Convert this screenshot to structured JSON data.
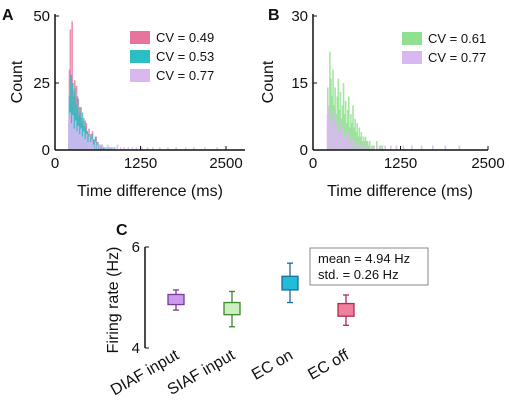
{
  "chart_data": [
    {
      "panel": "A",
      "type": "histogram",
      "xlabel": "Time difference (ms)",
      "ylabel": "Count",
      "xlim": [
        0,
        2500
      ],
      "ylim": [
        0,
        50
      ],
      "xticks": [
        "0",
        "1250",
        "2500"
      ],
      "yticks": [
        "0",
        "25",
        "50"
      ],
      "legend_position": "top-right",
      "series": [
        {
          "legend": "CV = 0.49",
          "color": "#e8739c",
          "bins": [
            [
              200,
              30
            ],
            [
              213,
              45
            ],
            [
              226,
              28
            ],
            [
              239,
              48
            ],
            [
              252,
              25
            ],
            [
              265,
              22
            ],
            [
              278,
              26
            ],
            [
              291,
              20
            ],
            [
              304,
              24
            ],
            [
              317,
              15
            ],
            [
              330,
              19
            ],
            [
              343,
              13
            ],
            [
              356,
              14
            ],
            [
              369,
              16
            ],
            [
              382,
              10
            ],
            [
              395,
              11
            ],
            [
              408,
              12
            ],
            [
              421,
              8
            ],
            [
              434,
              9
            ],
            [
              447,
              10
            ],
            [
              460,
              7
            ],
            [
              473,
              6
            ],
            [
              486,
              8
            ],
            [
              499,
              5
            ],
            [
              512,
              6
            ],
            [
              525,
              4
            ],
            [
              538,
              7
            ],
            [
              551,
              3
            ],
            [
              564,
              4
            ],
            [
              577,
              3
            ],
            [
              590,
              5
            ],
            [
              603,
              2
            ],
            [
              616,
              3
            ],
            [
              629,
              2
            ],
            [
              642,
              2
            ],
            [
              655,
              1
            ],
            [
              668,
              2
            ],
            [
              681,
              1
            ],
            [
              694,
              1
            ]
          ]
        },
        {
          "legend": "CV = 0.53",
          "color": "#2bbfc4",
          "bins": [
            [
              190,
              10
            ],
            [
              200,
              20
            ],
            [
              210,
              12
            ],
            [
              220,
              28
            ],
            [
              230,
              17
            ],
            [
              240,
              25
            ],
            [
              250,
              13
            ],
            [
              260,
              20
            ],
            [
              270,
              10
            ],
            [
              280,
              23
            ],
            [
              290,
              14
            ],
            [
              300,
              17
            ],
            [
              310,
              12
            ],
            [
              320,
              20
            ],
            [
              330,
              9
            ],
            [
              340,
              13
            ],
            [
              350,
              16
            ],
            [
              360,
              8
            ],
            [
              370,
              12
            ],
            [
              380,
              10
            ],
            [
              390,
              14
            ],
            [
              400,
              7
            ],
            [
              410,
              9
            ],
            [
              420,
              6
            ],
            [
              430,
              11
            ],
            [
              440,
              8
            ],
            [
              450,
              5
            ],
            [
              460,
              7
            ],
            [
              470,
              4
            ],
            [
              480,
              6
            ],
            [
              490,
              3
            ],
            [
              500,
              5
            ],
            [
              510,
              4
            ],
            [
              520,
              3
            ],
            [
              530,
              6
            ],
            [
              540,
              2
            ],
            [
              550,
              4
            ],
            [
              560,
              3
            ],
            [
              570,
              2
            ],
            [
              580,
              5
            ],
            [
              590,
              2
            ],
            [
              600,
              3
            ],
            [
              610,
              1
            ],
            [
              620,
              2
            ],
            [
              630,
              2
            ],
            [
              650,
              1
            ],
            [
              660,
              1
            ],
            [
              680,
              2
            ],
            [
              700,
              1
            ],
            [
              720,
              1
            ],
            [
              750,
              1
            ],
            [
              780,
              1
            ],
            [
              820,
              1
            ],
            [
              860,
              1
            ]
          ]
        },
        {
          "legend": "CV = 0.77",
          "color": "#d9b8f2",
          "bins": [
            [
              190,
              12
            ],
            [
              210,
              14
            ],
            [
              230,
              10
            ],
            [
              250,
              13
            ],
            [
              270,
              8
            ],
            [
              290,
              11
            ],
            [
              310,
              7
            ],
            [
              330,
              9
            ],
            [
              350,
              6
            ],
            [
              370,
              8
            ],
            [
              390,
              5
            ],
            [
              410,
              7
            ],
            [
              430,
              4
            ],
            [
              450,
              6
            ],
            [
              470,
              3
            ],
            [
              490,
              5
            ],
            [
              510,
              3
            ],
            [
              530,
              4
            ],
            [
              550,
              2
            ],
            [
              580,
              3
            ],
            [
              610,
              2
            ],
            [
              640,
              2
            ],
            [
              680,
              2
            ],
            [
              720,
              1
            ],
            [
              760,
              2
            ],
            [
              800,
              1
            ],
            [
              850,
              1
            ],
            [
              900,
              2
            ],
            [
              950,
              1
            ],
            [
              1000,
              1
            ],
            [
              1060,
              1
            ],
            [
              1120,
              1
            ],
            [
              1180,
              1
            ],
            [
              1260,
              1
            ],
            [
              1340,
              1
            ],
            [
              1420,
              1
            ],
            [
              1520,
              1
            ],
            [
              1640,
              1
            ],
            [
              1760,
              1
            ],
            [
              1900,
              1
            ],
            [
              2020,
              1
            ],
            [
              2180,
              1
            ],
            [
              2360,
              1
            ]
          ]
        }
      ]
    },
    {
      "panel": "B",
      "type": "histogram",
      "xlabel": "Time difference (ms)",
      "ylabel": "Count",
      "xlim": [
        0,
        2500
      ],
      "ylim": [
        0,
        30
      ],
      "xticks": [
        "0",
        "1250",
        "2500"
      ],
      "yticks": [
        "0",
        "15",
        "30"
      ],
      "legend_position": "top-right",
      "series": [
        {
          "legend": "CV = 0.61",
          "color": "#8fe08f",
          "bins": [
            [
              200,
              14
            ],
            [
              215,
              9
            ],
            [
              230,
              22
            ],
            [
              245,
              16
            ],
            [
              260,
              12
            ],
            [
              275,
              18
            ],
            [
              290,
              10
            ],
            [
              305,
              14
            ],
            [
              320,
              8
            ],
            [
              335,
              12
            ],
            [
              350,
              16
            ],
            [
              365,
              9
            ],
            [
              380,
              13
            ],
            [
              395,
              7
            ],
            [
              410,
              10
            ],
            [
              425,
              15
            ],
            [
              440,
              8
            ],
            [
              455,
              11
            ],
            [
              470,
              6
            ],
            [
              485,
              9
            ],
            [
              500,
              12
            ],
            [
              515,
              5
            ],
            [
              530,
              8
            ],
            [
              545,
              6
            ],
            [
              560,
              10
            ],
            [
              575,
              5
            ],
            [
              590,
              7
            ],
            [
              605,
              4
            ],
            [
              620,
              6
            ],
            [
              635,
              3
            ],
            [
              650,
              5
            ],
            [
              665,
              3
            ],
            [
              680,
              4
            ],
            [
              695,
              2
            ],
            [
              710,
              3
            ],
            [
              725,
              2
            ],
            [
              740,
              3
            ],
            [
              755,
              2
            ],
            [
              770,
              2
            ],
            [
              785,
              1
            ],
            [
              800,
              2
            ],
            [
              830,
              1
            ],
            [
              860,
              1
            ],
            [
              900,
              2
            ],
            [
              940,
              1
            ],
            [
              980,
              1
            ]
          ]
        },
        {
          "legend": "CV = 0.77",
          "color": "#d9b8f2",
          "bins": [
            [
              195,
              8
            ],
            [
              215,
              10
            ],
            [
              235,
              7
            ],
            [
              255,
              9
            ],
            [
              275,
              6
            ],
            [
              295,
              8
            ],
            [
              315,
              5
            ],
            [
              335,
              7
            ],
            [
              355,
              4
            ],
            [
              375,
              6
            ],
            [
              395,
              4
            ],
            [
              415,
              5
            ],
            [
              435,
              3
            ],
            [
              455,
              4
            ],
            [
              475,
              3
            ],
            [
              495,
              4
            ],
            [
              520,
              2
            ],
            [
              545,
              3
            ],
            [
              570,
              2
            ],
            [
              600,
              2
            ],
            [
              630,
              2
            ],
            [
              670,
              1
            ],
            [
              710,
              2
            ],
            [
              750,
              1
            ],
            [
              800,
              1
            ],
            [
              850,
              1
            ],
            [
              900,
              1
            ],
            [
              960,
              1
            ],
            [
              1020,
              1
            ],
            [
              1100,
              1
            ],
            [
              1180,
              1
            ],
            [
              1280,
              1
            ],
            [
              1400,
              1
            ],
            [
              1540,
              1
            ],
            [
              1700,
              1
            ],
            [
              1880,
              1
            ],
            [
              2080,
              1
            ]
          ]
        }
      ]
    },
    {
      "panel": "C",
      "type": "boxplot",
      "ylabel": "Firing rate (Hz)",
      "ylim": [
        4,
        6
      ],
      "yticks": [
        "4",
        "6"
      ],
      "annotation": [
        "mean = 4.94 Hz",
        "std. = 0.26 Hz"
      ],
      "categories": [
        "DIAF input",
        "SIAF input",
        "EC on",
        "EC off"
      ],
      "boxes": [
        {
          "color": "#cc99ee",
          "edge": "#7a3a99",
          "low": 4.75,
          "q1": 4.86,
          "q3": 5.06,
          "high": 5.15
        },
        {
          "color": "#cfeec0",
          "edge": "#3a8a2a",
          "low": 4.42,
          "q1": 4.66,
          "q3": 4.9,
          "high": 5.12
        },
        {
          "color": "#22bcd8",
          "edge": "#1a6d9a",
          "low": 4.9,
          "q1": 5.15,
          "q3": 5.42,
          "high": 5.68
        },
        {
          "color": "#ef7f9c",
          "edge": "#b3284d",
          "low": 4.45,
          "q1": 4.63,
          "q3": 4.88,
          "high": 5.05
        }
      ]
    }
  ]
}
